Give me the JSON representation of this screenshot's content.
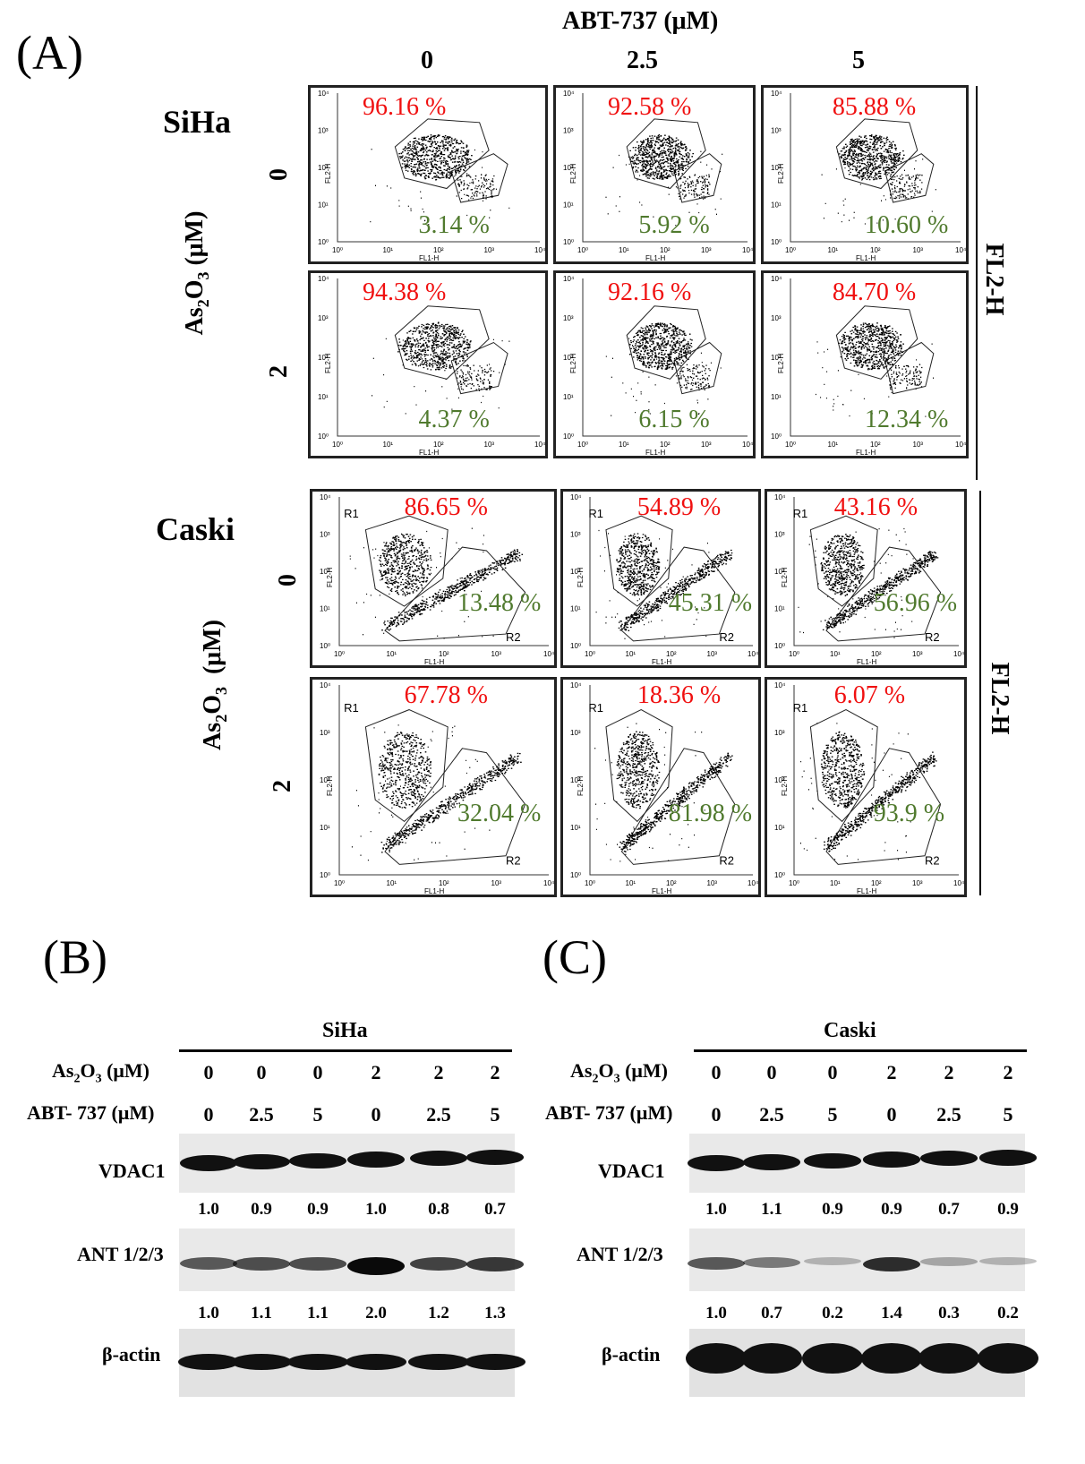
{
  "panels": {
    "a": "(A)",
    "b": "(B)",
    "c": "(C)"
  },
  "flow": {
    "top_label": "ABT-737 (μM)",
    "abt_doses": [
      "0",
      "2.5",
      "5"
    ],
    "row_label": "As2O3 (μM)",
    "side_label": "FL2-H",
    "axis_x": "FL1-H",
    "axis_y": "FL2-H",
    "gates": {
      "r1": "R1",
      "r2": "R2"
    },
    "siha": {
      "cell_line": "SiHa",
      "as_doses": [
        "0",
        "2"
      ],
      "red": [
        [
          "96.16 %",
          "92.58 %",
          "85.88 %"
        ],
        [
          "94.38 %",
          "92.16 %",
          "84.70 %"
        ]
      ],
      "green": [
        [
          "3.14 %",
          "5.92 %",
          "10.60 %"
        ],
        [
          "4.37 %",
          "6.15 %",
          "12.34 %"
        ]
      ]
    },
    "caski": {
      "cell_line": "Caski",
      "as_doses": [
        "0",
        "2"
      ],
      "red": [
        [
          "86.65 %",
          "54.89 %",
          "43.16 %"
        ],
        [
          "67.78 %",
          "18.36 %",
          "6.07 %"
        ]
      ],
      "green": [
        [
          "13.48 %",
          "45.31 %",
          "56.96 %"
        ],
        [
          "32.04 %",
          "81.98 %",
          "93.9 %"
        ]
      ]
    }
  },
  "western": {
    "as_label": "As2O3 (μM)",
    "abt_label": "ABT- 737 (μM)",
    "as_values": [
      "0",
      "0",
      "0",
      "2",
      "2",
      "2"
    ],
    "abt_values": [
      "0",
      "2.5",
      "5",
      "0",
      "2.5",
      "5"
    ],
    "proteins": {
      "vdac1": "VDAC1",
      "ant": "ANT 1/2/3",
      "actin": "β-actin"
    },
    "siha": {
      "title": "SiHa",
      "vdac1_quant": [
        "1.0",
        "0.9",
        "0.9",
        "1.0",
        "0.8",
        "0.7"
      ],
      "ant_quant": [
        "1.0",
        "1.1",
        "1.1",
        "2.0",
        "1.2",
        "1.3"
      ]
    },
    "caski": {
      "title": "Caski",
      "vdac1_quant": [
        "1.0",
        "1.1",
        "0.9",
        "0.9",
        "0.7",
        "0.9"
      ],
      "ant_quant": [
        "1.0",
        "0.7",
        "0.2",
        "1.4",
        "0.3",
        "0.2"
      ]
    }
  },
  "ticks": [
    "10⁰",
    "10¹",
    "10²",
    "10³",
    "10⁴"
  ]
}
